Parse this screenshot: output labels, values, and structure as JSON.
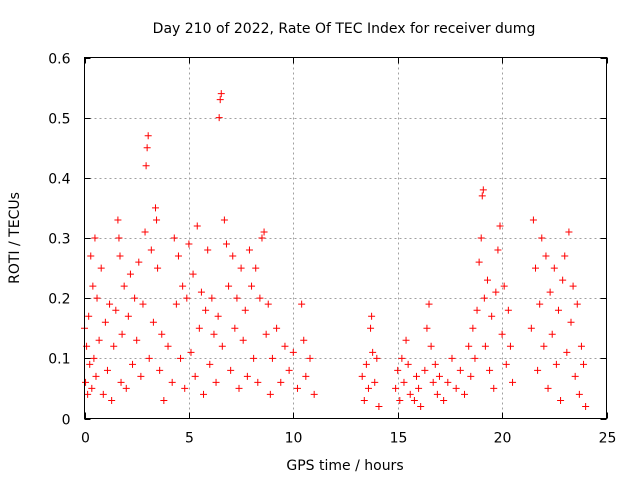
{
  "chart_data": {
    "type": "scatter",
    "title": "Day 210 of 2022, Rate Of TEC Index for receiver dumg",
    "xlabel": "GPS time / hours",
    "ylabel": "ROTI / TECUs",
    "xlim": [
      0,
      25
    ],
    "ylim": [
      0,
      0.6
    ],
    "xticks": [
      0,
      5,
      10,
      15,
      20,
      25
    ],
    "yticks": [
      0,
      0.1,
      0.2,
      0.3,
      0.4,
      0.5,
      0.6
    ],
    "xtick_labels": [
      "0",
      "5",
      "10",
      "15",
      "20",
      "25"
    ],
    "ytick_labels": [
      "0",
      "0.1",
      "0.2",
      "0.3",
      "0.4",
      "0.5",
      "0.6"
    ],
    "grid": true,
    "marker": "+",
    "color": "#ff0000",
    "series": [
      {
        "points": [
          [
            0.0,
            0.15
          ],
          [
            0.05,
            0.06
          ],
          [
            0.1,
            0.12
          ],
          [
            0.15,
            0.04
          ],
          [
            0.2,
            0.17
          ],
          [
            0.25,
            0.09
          ],
          [
            0.3,
            0.27
          ],
          [
            0.35,
            0.05
          ],
          [
            0.4,
            0.22
          ],
          [
            0.45,
            0.1
          ],
          [
            0.5,
            0.3
          ],
          [
            0.55,
            0.07
          ],
          [
            0.6,
            0.2
          ],
          [
            0.7,
            0.13
          ],
          [
            0.8,
            0.25
          ],
          [
            0.9,
            0.04
          ],
          [
            1.0,
            0.16
          ],
          [
            1.1,
            0.08
          ],
          [
            1.2,
            0.19
          ],
          [
            1.3,
            0.03
          ],
          [
            1.4,
            0.12
          ],
          [
            1.5,
            0.18
          ],
          [
            1.6,
            0.33
          ],
          [
            1.65,
            0.3
          ],
          [
            1.7,
            0.27
          ],
          [
            1.75,
            0.06
          ],
          [
            1.8,
            0.14
          ],
          [
            1.9,
            0.22
          ],
          [
            2.0,
            0.05
          ],
          [
            2.1,
            0.17
          ],
          [
            2.2,
            0.24
          ],
          [
            2.3,
            0.09
          ],
          [
            2.4,
            0.2
          ],
          [
            2.5,
            0.13
          ],
          [
            2.6,
            0.26
          ],
          [
            2.7,
            0.07
          ],
          [
            2.8,
            0.19
          ],
          [
            2.9,
            0.31
          ],
          [
            2.95,
            0.42
          ],
          [
            3.0,
            0.45
          ],
          [
            3.05,
            0.47
          ],
          [
            3.1,
            0.1
          ],
          [
            3.2,
            0.28
          ],
          [
            3.3,
            0.16
          ],
          [
            3.4,
            0.35
          ],
          [
            3.45,
            0.33
          ],
          [
            3.5,
            0.25
          ],
          [
            3.6,
            0.08
          ],
          [
            3.7,
            0.14
          ],
          [
            3.8,
            0.03
          ],
          [
            4.0,
            0.12
          ],
          [
            4.2,
            0.06
          ],
          [
            4.3,
            0.3
          ],
          [
            4.4,
            0.19
          ],
          [
            4.5,
            0.27
          ],
          [
            4.6,
            0.1
          ],
          [
            4.7,
            0.22
          ],
          [
            4.8,
            0.05
          ],
          [
            4.9,
            0.2
          ],
          [
            5.0,
            0.29
          ],
          [
            5.1,
            0.11
          ],
          [
            5.2,
            0.24
          ],
          [
            5.3,
            0.07
          ],
          [
            5.4,
            0.32
          ],
          [
            5.5,
            0.15
          ],
          [
            5.6,
            0.21
          ],
          [
            5.7,
            0.04
          ],
          [
            5.8,
            0.18
          ],
          [
            5.9,
            0.28
          ],
          [
            6.0,
            0.09
          ],
          [
            6.1,
            0.2
          ],
          [
            6.2,
            0.14
          ],
          [
            6.3,
            0.06
          ],
          [
            6.4,
            0.17
          ],
          [
            6.45,
            0.5
          ],
          [
            6.5,
            0.53
          ],
          [
            6.55,
            0.54
          ],
          [
            6.6,
            0.12
          ],
          [
            6.7,
            0.33
          ],
          [
            6.8,
            0.29
          ],
          [
            6.9,
            0.22
          ],
          [
            7.0,
            0.08
          ],
          [
            7.1,
            0.27
          ],
          [
            7.2,
            0.15
          ],
          [
            7.3,
            0.2
          ],
          [
            7.4,
            0.05
          ],
          [
            7.5,
            0.25
          ],
          [
            7.6,
            0.13
          ],
          [
            7.7,
            0.18
          ],
          [
            7.8,
            0.07
          ],
          [
            7.9,
            0.28
          ],
          [
            8.0,
            0.22
          ],
          [
            8.1,
            0.1
          ],
          [
            8.2,
            0.25
          ],
          [
            8.3,
            0.06
          ],
          [
            8.4,
            0.2
          ],
          [
            8.5,
            0.3
          ],
          [
            8.6,
            0.31
          ],
          [
            8.7,
            0.14
          ],
          [
            8.8,
            0.19
          ],
          [
            8.9,
            0.04
          ],
          [
            9.0,
            0.1
          ],
          [
            9.2,
            0.15
          ],
          [
            9.4,
            0.06
          ],
          [
            9.6,
            0.12
          ],
          [
            9.8,
            0.08
          ],
          [
            10.0,
            0.11
          ],
          [
            10.2,
            0.05
          ],
          [
            10.4,
            0.19
          ],
          [
            10.5,
            0.13
          ],
          [
            10.6,
            0.07
          ],
          [
            10.8,
            0.1
          ],
          [
            11.0,
            0.04
          ],
          [
            13.3,
            0.07
          ],
          [
            13.4,
            0.03
          ],
          [
            13.5,
            0.09
          ],
          [
            13.6,
            0.05
          ],
          [
            13.7,
            0.15
          ],
          [
            13.75,
            0.17
          ],
          [
            13.8,
            0.11
          ],
          [
            13.9,
            0.06
          ],
          [
            14.0,
            0.1
          ],
          [
            14.1,
            0.02
          ],
          [
            14.9,
            0.05
          ],
          [
            15.0,
            0.08
          ],
          [
            15.1,
            0.03
          ],
          [
            15.2,
            0.1
          ],
          [
            15.3,
            0.06
          ],
          [
            15.4,
            0.13
          ],
          [
            15.5,
            0.09
          ],
          [
            15.6,
            0.04
          ],
          [
            15.8,
            0.03
          ],
          [
            15.9,
            0.07
          ],
          [
            16.0,
            0.05
          ],
          [
            16.1,
            0.02
          ],
          [
            16.3,
            0.08
          ],
          [
            16.4,
            0.15
          ],
          [
            16.5,
            0.19
          ],
          [
            16.6,
            0.12
          ],
          [
            16.7,
            0.06
          ],
          [
            16.8,
            0.09
          ],
          [
            16.9,
            0.04
          ],
          [
            17.0,
            0.07
          ],
          [
            17.2,
            0.03
          ],
          [
            17.4,
            0.06
          ],
          [
            17.6,
            0.1
          ],
          [
            17.8,
            0.05
          ],
          [
            18.0,
            0.08
          ],
          [
            18.2,
            0.04
          ],
          [
            18.4,
            0.12
          ],
          [
            18.5,
            0.07
          ],
          [
            18.6,
            0.15
          ],
          [
            18.7,
            0.1
          ],
          [
            18.8,
            0.18
          ],
          [
            18.9,
            0.26
          ],
          [
            19.0,
            0.3
          ],
          [
            19.05,
            0.37
          ],
          [
            19.1,
            0.38
          ],
          [
            19.15,
            0.2
          ],
          [
            19.2,
            0.12
          ],
          [
            19.3,
            0.23
          ],
          [
            19.4,
            0.08
          ],
          [
            19.5,
            0.17
          ],
          [
            19.6,
            0.05
          ],
          [
            19.7,
            0.21
          ],
          [
            19.8,
            0.28
          ],
          [
            19.9,
            0.32
          ],
          [
            20.0,
            0.14
          ],
          [
            20.1,
            0.22
          ],
          [
            20.2,
            0.09
          ],
          [
            20.3,
            0.18
          ],
          [
            20.4,
            0.12
          ],
          [
            20.5,
            0.06
          ],
          [
            21.4,
            0.15
          ],
          [
            21.5,
            0.33
          ],
          [
            21.6,
            0.25
          ],
          [
            21.7,
            0.08
          ],
          [
            21.8,
            0.19
          ],
          [
            21.9,
            0.3
          ],
          [
            22.0,
            0.12
          ],
          [
            22.1,
            0.27
          ],
          [
            22.2,
            0.05
          ],
          [
            22.3,
            0.21
          ],
          [
            22.4,
            0.14
          ],
          [
            22.5,
            0.25
          ],
          [
            22.6,
            0.09
          ],
          [
            22.7,
            0.18
          ],
          [
            22.8,
            0.03
          ],
          [
            22.9,
            0.23
          ],
          [
            23.0,
            0.27
          ],
          [
            23.1,
            0.11
          ],
          [
            23.2,
            0.31
          ],
          [
            23.3,
            0.16
          ],
          [
            23.4,
            0.22
          ],
          [
            23.5,
            0.07
          ],
          [
            23.6,
            0.19
          ],
          [
            23.7,
            0.04
          ],
          [
            23.8,
            0.12
          ],
          [
            23.9,
            0.09
          ],
          [
            24.0,
            0.02
          ]
        ]
      }
    ]
  }
}
